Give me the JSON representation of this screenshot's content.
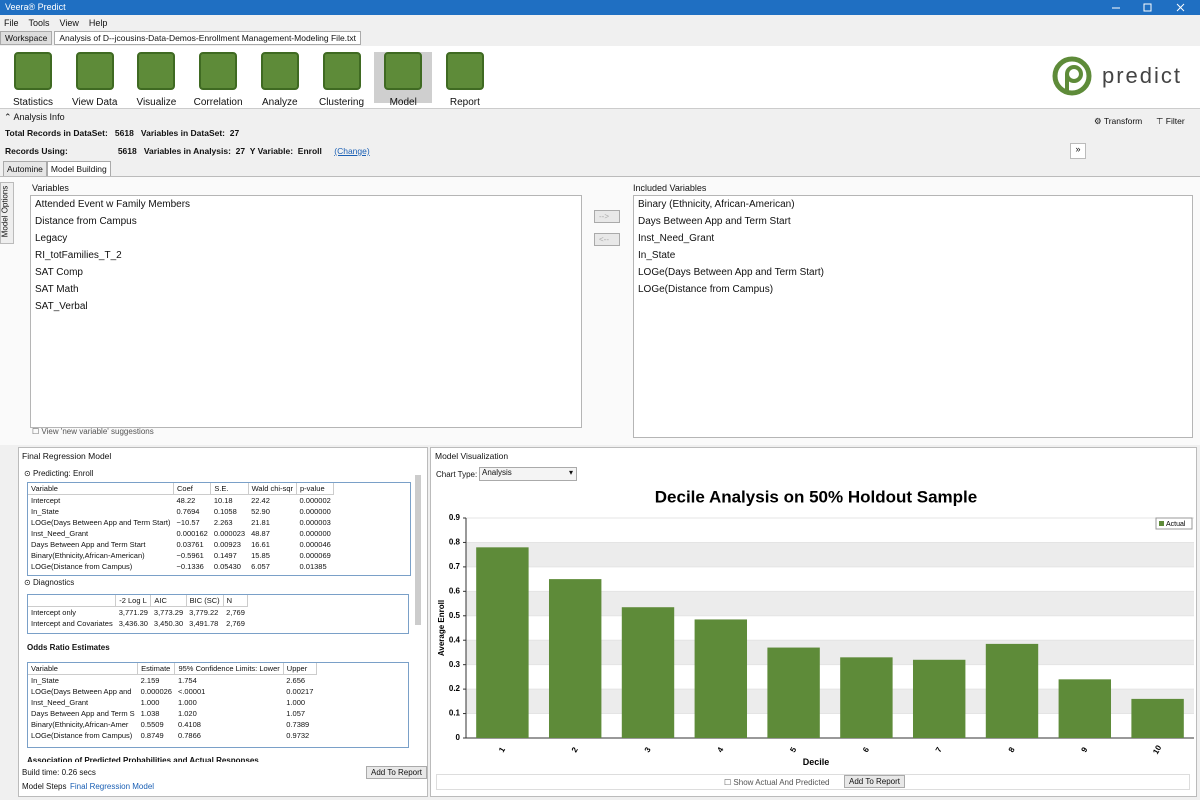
{
  "window": {
    "title": "Veera® Predict"
  },
  "menu": [
    "File",
    "Tools",
    "View",
    "Help"
  ],
  "tabs": [
    "Workspace",
    "Analysis of D--jcousins-Data-Demos-Enrollment Management-Modeling File.txt"
  ],
  "toolbar": [
    "Statistics",
    "View Data",
    "Visualize",
    "Correlation",
    "Analyze",
    "Clustering",
    "Model",
    "Report"
  ],
  "logo": "predict",
  "analysis_info": {
    "title": "Analysis Info",
    "total_records_label": "Total Records in DataSet:",
    "total_records": 5618,
    "variables_dataset_label": "Variables in DataSet:",
    "variables_dataset": 27,
    "records_using_label": "Records Using:",
    "records_using": 5618,
    "variables_analysis_label": "Variables in Analysis:",
    "variables_analysis": 27,
    "y_variable_label": "Y Variable:",
    "y_variable": "Enroll",
    "change": "(Change)",
    "transform": "Transform",
    "filter": "Filter"
  },
  "subtabs": [
    "Automine",
    "Model Building"
  ],
  "model_options": "Model Options",
  "variables": {
    "title": "Variables",
    "items": [
      "Attended Event w Family Members",
      "Distance from Campus",
      "Legacy",
      "RI_totFamilies_T_2",
      "SAT Comp",
      "SAT Math",
      "SAT_Verbal"
    ],
    "suggestions": "View 'new variable' suggestions"
  },
  "move_buttons": [
    "-->",
    "<--"
  ],
  "included": {
    "title": "Included Variables",
    "items": [
      "Binary (Ethnicity, African-American)",
      "Days Between App and Term Start",
      "Inst_Need_Grant",
      "In_State",
      "LOGe(Days Between App and Term Start)",
      "LOGe(Distance from Campus)"
    ]
  },
  "regression": {
    "title": "Final Regression Model",
    "predicting": "Predicting:  Enroll",
    "columns": [
      "Variable",
      "Coef",
      "S.E.",
      "Wald chi-sqr",
      "p-value"
    ],
    "rows": [
      [
        "Intercept",
        "48.22",
        "10.18",
        "22.42",
        "0.000002"
      ],
      [
        "In_State",
        "0.7694",
        "0.1058",
        "52.90",
        "0.000000"
      ],
      [
        "LOGe(Days Between App and Term Start)",
        "−10.57",
        "2.263",
        "21.81",
        "0.000003"
      ],
      [
        "Inst_Need_Grant",
        "0.000162",
        "0.000023",
        "48.87",
        "0.000000"
      ],
      [
        "Days Between App and Term Start",
        "0.03761",
        "0.00923",
        "16.61",
        "0.000046"
      ],
      [
        "Binary(Ethnicity,African-American)",
        "−0.5961",
        "0.1497",
        "15.85",
        "0.000069"
      ],
      [
        "LOGe(Distance from Campus)",
        "−0.1336",
        "0.05430",
        "6.057",
        "0.01385"
      ]
    ],
    "diagnostics_title": "Diagnostics",
    "diagnostics_columns": [
      "-2 Log L",
      "AIC",
      "BIC (SC)",
      "N"
    ],
    "diagnostics_rows": [
      [
        "Intercept only",
        "3,771.29",
        "3,773.29",
        "3,779.22",
        "2,769"
      ],
      [
        "Intercept and Covariates",
        "3,436.30",
        "3,450.30",
        "3,491.78",
        "2,769"
      ]
    ],
    "odds_title": "Odds Ratio Estimates",
    "odds_columns": [
      "Variable",
      "Estimate",
      "95% Confidence Limits: Lower",
      "Upper"
    ],
    "odds_rows": [
      [
        "In_State",
        "2.159",
        "1.754",
        "2.656"
      ],
      [
        "LOGe(Days Between App and",
        "0.000026",
        "<.00001",
        "0.00217"
      ],
      [
        "Inst_Need_Grant",
        "1.000",
        "1.000",
        "1.000"
      ],
      [
        "Days Between App and Term S",
        "1.038",
        "1.020",
        "1.057"
      ],
      [
        "Binary(Ethnicity,African-Amer",
        "0.5509",
        "0.4108",
        "0.7389"
      ],
      [
        "LOGe(Distance from Campus)",
        "0.8749",
        "0.7866",
        "0.9732"
      ]
    ],
    "association": "Association of Predicted Probabilities and Actual Responses",
    "build_time": "Build time: 0.26 secs",
    "add_to_report": "Add To Report",
    "bottom_tabs": [
      "Model Steps",
      "Final Regression Model"
    ]
  },
  "visualization": {
    "title": "Model Visualization",
    "chart_type_label": "Chart Type:",
    "chart_type": "Analysis",
    "show_both": "Show Actual And Predicted",
    "add_to_report": "Add To Report"
  },
  "chart_data": {
    "type": "bar",
    "title": "Decile Analysis on 50% Holdout Sample",
    "x_label": "Decile",
    "y_label": "Average Enroll",
    "categories": [
      "1",
      "2",
      "3",
      "4",
      "5",
      "6",
      "7",
      "8",
      "9",
      "10"
    ],
    "series": [
      {
        "name": "Actual",
        "color": "#5e8b39",
        "values": [
          0.78,
          0.65,
          0.535,
          0.485,
          0.37,
          0.33,
          0.32,
          0.385,
          0.24,
          0.16
        ]
      }
    ],
    "ylim": [
      0,
      0.9
    ],
    "yticks": [
      0,
      0.1,
      0.2,
      0.3,
      0.4,
      0.5,
      0.6,
      0.7,
      0.8,
      0.9
    ],
    "grid": true,
    "legend": "top-right"
  }
}
